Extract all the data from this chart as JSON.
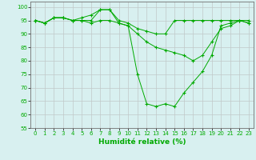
{
  "xlabel": "Humidité relative (%)",
  "background_color": "#d8f0f0",
  "grid_color": "#c0c8c8",
  "line_color": "#00aa00",
  "marker": "+",
  "xlim": [
    -0.5,
    23.5
  ],
  "ylim": [
    55,
    102
  ],
  "yticks": [
    55,
    60,
    65,
    70,
    75,
    80,
    85,
    90,
    95,
    100
  ],
  "xticks": [
    0,
    1,
    2,
    3,
    4,
    5,
    6,
    7,
    8,
    9,
    10,
    11,
    12,
    13,
    14,
    15,
    16,
    17,
    18,
    19,
    20,
    21,
    22,
    23
  ],
  "series": [
    [
      95,
      94,
      96,
      96,
      95,
      95,
      95,
      99,
      99,
      94,
      93,
      75,
      64,
      63,
      64,
      63,
      68,
      72,
      76,
      82,
      93,
      94,
      95,
      94
    ],
    [
      95,
      94,
      96,
      96,
      95,
      95,
      94,
      95,
      95,
      94,
      93,
      90,
      87,
      85,
      84,
      83,
      82,
      80,
      82,
      87,
      92,
      93,
      95,
      94
    ],
    [
      95,
      94,
      96,
      96,
      95,
      96,
      97,
      99,
      99,
      95,
      94,
      92,
      91,
      90,
      90,
      95,
      95,
      95,
      95,
      95,
      95,
      95,
      95,
      95
    ]
  ]
}
